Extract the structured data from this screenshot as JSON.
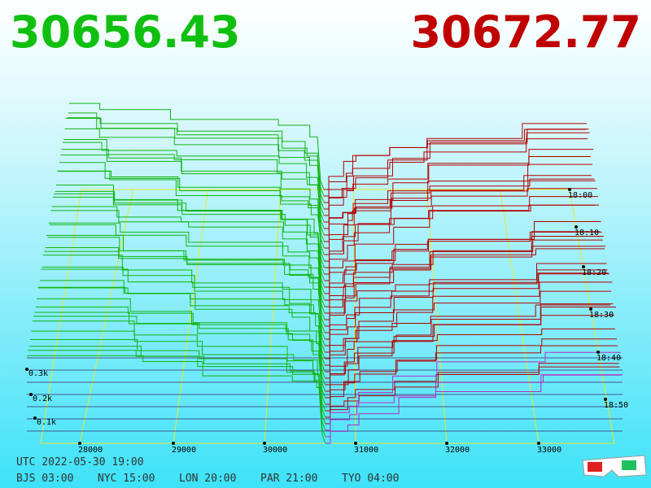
{
  "header": {
    "bid": "30656.43",
    "ask": "30672.77"
  },
  "price_axis": {
    "ticks": [
      "28000",
      "29000",
      "30000",
      "31000",
      "32000",
      "33000"
    ]
  },
  "depth_axis": {
    "ticks": [
      "0.1k",
      "0.2k",
      "0.3k"
    ]
  },
  "time_axis": {
    "ticks": [
      "18:00",
      "18:10",
      "18:20",
      "18:30",
      "18:40",
      "18:50"
    ]
  },
  "footer": {
    "utc": "UTC 2022-05-30 19:00",
    "zones": [
      "BJS 03:00",
      "NYC 15:00",
      "LON 20:00",
      "PAR 21:00",
      "TYO 04:00"
    ]
  }
}
